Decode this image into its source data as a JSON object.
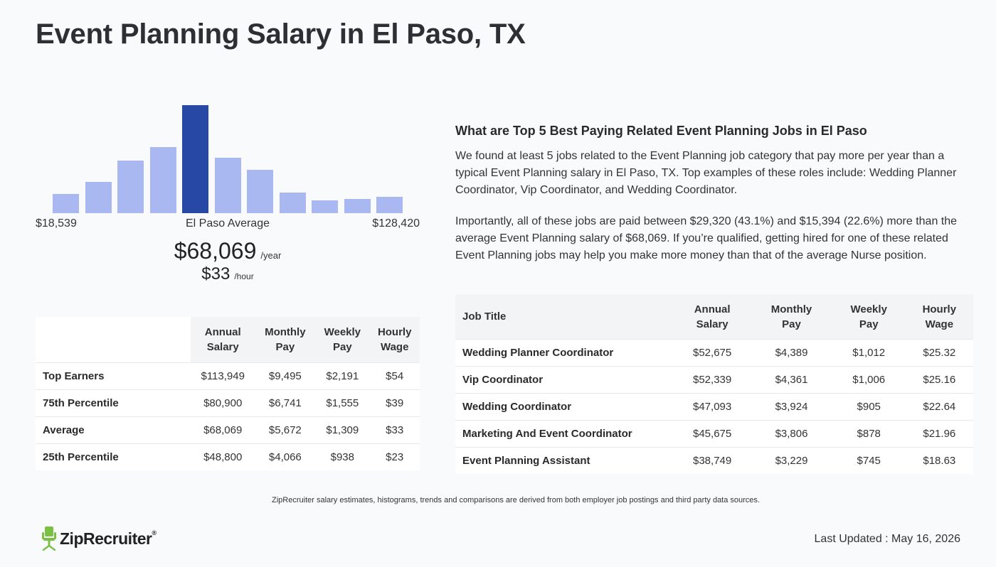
{
  "title": "Event Planning Salary in El Paso, TX",
  "histogram": {
    "bar_levels": [
      0.18,
      0.29,
      0.49,
      0.61,
      1.0,
      0.51,
      0.4,
      0.19,
      0.12,
      0.13,
      0.15
    ],
    "highlight_index": 4,
    "min_label": "$18,539",
    "mid_label": "El Paso Average",
    "max_label": "$128,420",
    "bar_color": "#a9b8f0",
    "highlight_color": "#2748a5"
  },
  "salary": {
    "annual": "$68,069",
    "annual_unit": "/year",
    "hourly": "$33",
    "hourly_unit": "/hour"
  },
  "percentile_table": {
    "headers": [
      [
        "Annual",
        "Salary"
      ],
      [
        "Monthly",
        "Pay"
      ],
      [
        "Weekly",
        "Pay"
      ],
      [
        "Hourly",
        "Wage"
      ]
    ],
    "rows": [
      {
        "label": "Top Earners",
        "annual": "$113,949",
        "monthly": "$9,495",
        "weekly": "$2,191",
        "hourly": "$54"
      },
      {
        "label": "75th Percentile",
        "annual": "$80,900",
        "monthly": "$6,741",
        "weekly": "$1,555",
        "hourly": "$39"
      },
      {
        "label": "Average",
        "annual": "$68,069",
        "monthly": "$5,672",
        "weekly": "$1,309",
        "hourly": "$33"
      },
      {
        "label": "25th Percentile",
        "annual": "$48,800",
        "monthly": "$4,066",
        "weekly": "$938",
        "hourly": "$23"
      }
    ]
  },
  "related": {
    "heading": "What are Top 5 Best Paying Related Event Planning Jobs in El Paso",
    "paragraph1": "We found at least 5 jobs related to the Event Planning job category that pay more per year than a typical Event Planning salary in El Paso, TX. Top examples of these roles include: Wedding Planner Coordinator, Vip Coordinator, and Wedding Coordinator.",
    "paragraph2": "Importantly, all of these jobs are paid between $29,320 (43.1%) and $15,394 (22.6%) more than the average Event Planning salary of $68,069. If you’re qualified, getting hired for one of these related Event Planning jobs may help you make more money than that of the average Nurse position."
  },
  "jobs_table": {
    "headers": {
      "job_title": "Job Title",
      "annual": [
        "Annual",
        "Salary"
      ],
      "monthly": [
        "Monthly",
        "Pay"
      ],
      "weekly": [
        "Weekly",
        "Pay"
      ],
      "hourly": [
        "Hourly",
        "Wage"
      ]
    },
    "rows": [
      {
        "title": "Wedding Planner Coordinator",
        "annual": "$52,675",
        "monthly": "$4,389",
        "weekly": "$1,012",
        "hourly": "$25.32"
      },
      {
        "title": "Vip Coordinator",
        "annual": "$52,339",
        "monthly": "$4,361",
        "weekly": "$1,006",
        "hourly": "$25.16"
      },
      {
        "title": "Wedding Coordinator",
        "annual": "$47,093",
        "monthly": "$3,924",
        "weekly": "$905",
        "hourly": "$22.64"
      },
      {
        "title": "Marketing And Event Coordinator",
        "annual": "$45,675",
        "monthly": "$3,806",
        "weekly": "$878",
        "hourly": "$21.96"
      },
      {
        "title": "Event Planning Assistant",
        "annual": "$38,749",
        "monthly": "$3,229",
        "weekly": "$745",
        "hourly": "$18.63"
      }
    ]
  },
  "footnote": "ZipRecruiter salary estimates, histograms, trends and comparisons are derived from both employer job postings and third party data sources.",
  "logo": {
    "text": "ZipRecruiter",
    "reg": "®",
    "icon": "chair-icon",
    "color": "#7ac143"
  },
  "last_updated": "Last Updated : May 16, 2026"
}
